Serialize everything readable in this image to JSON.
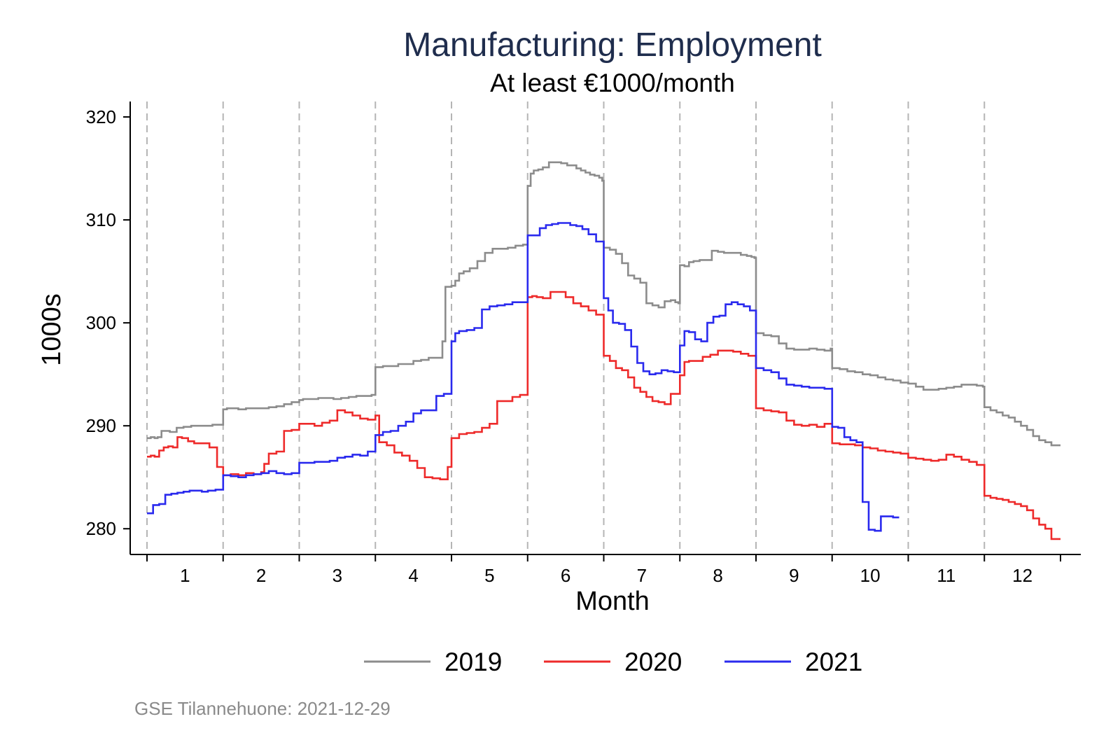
{
  "chart_data": {
    "type": "line",
    "title": "Manufacturing: Employment",
    "subtitle": "At least €1000/month",
    "xlabel": "Month",
    "ylabel": "1000s",
    "footnote": "GSE Tilannehuone: 2021-12-29",
    "x_ticks": [
      "1",
      "2",
      "3",
      "4",
      "5",
      "6",
      "7",
      "8",
      "9",
      "10",
      "11",
      "12"
    ],
    "xlim": [
      1,
      13
    ],
    "ylim": [
      277.5,
      321.5
    ],
    "y_ticks": [
      280,
      290,
      300,
      310,
      320
    ],
    "month_boundaries": [
      1,
      2,
      3,
      4,
      5,
      6,
      7,
      8,
      9,
      10,
      11,
      12
    ],
    "grid": "vertical dashed month boundaries",
    "legend_position": "bottom",
    "colors": {
      "2019": "#8c8c8c",
      "2020": "#ee2a2a",
      "2021": "#2a2aee",
      "title": "#1f2d4d",
      "footnote": "#8a8a8a",
      "gridline": "#b5b5b5"
    },
    "series": [
      {
        "name": "2019",
        "color": "#8c8c8c",
        "x": [
          1.0,
          1.05,
          1.1,
          1.14,
          1.19,
          1.25,
          1.3,
          1.39,
          1.48,
          1.58,
          1.67,
          1.77,
          1.86,
          1.96,
          2.0,
          2.05,
          2.12,
          2.2,
          2.3,
          2.4,
          2.5,
          2.6,
          2.7,
          2.8,
          2.9,
          3.0,
          3.05,
          3.15,
          3.25,
          3.35,
          3.45,
          3.55,
          3.65,
          3.75,
          3.85,
          3.95,
          4.0,
          4.1,
          4.2,
          4.3,
          4.4,
          4.5,
          4.6,
          4.7,
          4.8,
          4.88,
          4.92,
          5.0,
          5.05,
          5.1,
          5.16,
          5.24,
          5.34,
          5.44,
          5.54,
          5.64,
          5.74,
          5.84,
          5.94,
          6.0,
          6.04,
          6.08,
          6.14,
          6.2,
          6.28,
          6.34,
          6.44,
          6.52,
          6.58,
          6.64,
          6.7,
          6.76,
          6.82,
          6.88,
          6.94,
          6.98,
          7.0,
          7.08,
          7.16,
          7.24,
          7.32,
          7.4,
          7.48,
          7.56,
          7.64,
          7.72,
          7.8,
          7.88,
          7.94,
          7.98,
          8.0,
          8.06,
          8.12,
          8.18,
          8.26,
          8.34,
          8.42,
          8.5,
          8.58,
          8.64,
          8.72,
          8.8,
          8.88,
          8.94,
          8.98,
          9.0,
          9.1,
          9.2,
          9.3,
          9.4,
          9.5,
          9.6,
          9.7,
          9.8,
          9.9,
          9.98,
          10.0,
          10.1,
          10.2,
          10.3,
          10.4,
          10.5,
          10.6,
          10.7,
          10.8,
          10.9,
          11.0,
          11.1,
          11.2,
          11.3,
          11.4,
          11.5,
          11.6,
          11.7,
          11.8,
          11.9,
          11.98,
          12.0,
          12.08,
          12.16,
          12.24,
          12.32,
          12.4,
          12.48,
          12.56,
          12.64,
          12.72,
          12.8,
          12.88,
          12.96
        ],
        "y": [
          288.8,
          288.9,
          288.8,
          288.9,
          289.5,
          289.5,
          289.4,
          289.8,
          289.9,
          290.0,
          290.0,
          290.0,
          290.1,
          290.1,
          291.6,
          291.7,
          291.7,
          291.6,
          291.7,
          291.7,
          291.7,
          291.8,
          291.9,
          292.1,
          292.3,
          292.5,
          292.6,
          292.6,
          292.7,
          292.7,
          292.6,
          292.7,
          292.8,
          292.9,
          292.9,
          293.0,
          295.7,
          295.8,
          295.8,
          296.0,
          296.0,
          296.3,
          296.4,
          296.6,
          296.6,
          298.2,
          303.5,
          303.6,
          304.1,
          304.8,
          305.0,
          305.3,
          306.0,
          306.8,
          307.2,
          307.2,
          307.3,
          307.5,
          307.6,
          313.3,
          314.5,
          314.8,
          314.9,
          315.1,
          315.6,
          315.6,
          315.5,
          315.3,
          315.3,
          315.0,
          314.8,
          314.6,
          314.4,
          314.3,
          314.1,
          313.8,
          307.3,
          307.1,
          306.7,
          305.8,
          304.6,
          304.3,
          303.9,
          301.9,
          301.7,
          301.5,
          302.1,
          302.2,
          302.0,
          301.9,
          305.6,
          305.5,
          305.9,
          306.0,
          306.1,
          306.1,
          307.0,
          306.9,
          306.8,
          306.8,
          306.8,
          306.6,
          306.5,
          306.4,
          306.3,
          299.0,
          298.8,
          298.7,
          298.0,
          297.5,
          297.4,
          297.4,
          297.5,
          297.4,
          297.3,
          297.5,
          295.6,
          295.5,
          295.3,
          295.2,
          295.0,
          294.9,
          294.7,
          294.5,
          294.4,
          294.2,
          294.1,
          293.8,
          293.5,
          293.5,
          293.6,
          293.7,
          293.8,
          294.0,
          294.0,
          293.9,
          293.8,
          291.8,
          291.5,
          291.3,
          291.0,
          290.8,
          290.4,
          290.0,
          289.6,
          289.0,
          288.6,
          288.4,
          288.1,
          288.1
        ]
      },
      {
        "name": "2020",
        "color": "#ee2a2a",
        "x": [
          1.0,
          1.05,
          1.1,
          1.16,
          1.22,
          1.28,
          1.34,
          1.4,
          1.46,
          1.54,
          1.62,
          1.72,
          1.82,
          1.92,
          2.0,
          2.1,
          2.2,
          2.3,
          2.4,
          2.5,
          2.54,
          2.6,
          2.7,
          2.8,
          2.9,
          3.0,
          3.1,
          3.2,
          3.3,
          3.4,
          3.5,
          3.6,
          3.7,
          3.8,
          3.9,
          4.0,
          4.05,
          4.15,
          4.25,
          4.35,
          4.45,
          4.55,
          4.65,
          4.75,
          4.85,
          4.95,
          5.0,
          5.1,
          5.2,
          5.3,
          5.4,
          5.5,
          5.6,
          5.7,
          5.8,
          5.9,
          6.0,
          6.06,
          6.12,
          6.2,
          6.3,
          6.4,
          6.5,
          6.6,
          6.7,
          6.8,
          6.9,
          7.0,
          7.08,
          7.16,
          7.24,
          7.32,
          7.4,
          7.48,
          7.56,
          7.64,
          7.72,
          7.8,
          7.88,
          7.94,
          8.0,
          8.06,
          8.12,
          8.2,
          8.3,
          8.4,
          8.5,
          8.6,
          8.7,
          8.8,
          8.9,
          9.0,
          9.1,
          9.2,
          9.3,
          9.4,
          9.5,
          9.6,
          9.7,
          9.8,
          9.9,
          10.0,
          10.1,
          10.2,
          10.3,
          10.4,
          10.5,
          10.6,
          10.7,
          10.8,
          10.9,
          11.0,
          11.1,
          11.2,
          11.3,
          11.4,
          11.5,
          11.6,
          11.7,
          11.8,
          11.9,
          12.0,
          12.08,
          12.16,
          12.24,
          12.32,
          12.4,
          12.48,
          12.56,
          12.64,
          12.72,
          12.8,
          12.88,
          12.96
        ],
        "y": [
          287.0,
          287.1,
          287.0,
          287.6,
          287.9,
          288.0,
          287.9,
          288.9,
          288.8,
          288.5,
          288.3,
          288.3,
          287.9,
          286.0,
          285.2,
          285.3,
          285.2,
          285.4,
          285.3,
          285.5,
          286.3,
          287.3,
          287.5,
          289.5,
          289.6,
          290.2,
          290.2,
          290.0,
          290.3,
          290.5,
          291.5,
          291.3,
          291.0,
          290.7,
          290.6,
          291.0,
          288.4,
          288.1,
          287.4,
          287.1,
          286.6,
          285.9,
          285.0,
          284.9,
          284.8,
          286.0,
          288.8,
          289.2,
          289.3,
          289.4,
          289.8,
          290.2,
          292.4,
          292.4,
          292.8,
          293.0,
          302.5,
          302.6,
          302.5,
          302.4,
          303.0,
          303.0,
          302.5,
          301.9,
          301.6,
          301.2,
          300.8,
          296.8,
          296.3,
          295.6,
          295.4,
          294.7,
          293.7,
          293.3,
          292.8,
          292.4,
          292.3,
          292.1,
          293.1,
          293.1,
          294.9,
          296.2,
          296.3,
          296.3,
          296.7,
          296.9,
          297.3,
          297.3,
          297.2,
          297.0,
          296.8,
          291.7,
          291.5,
          291.4,
          291.3,
          290.5,
          290.1,
          290.0,
          290.1,
          289.9,
          290.2,
          288.3,
          288.2,
          288.2,
          288.1,
          287.9,
          287.8,
          287.6,
          287.5,
          287.4,
          287.3,
          286.9,
          286.8,
          286.7,
          286.6,
          286.7,
          287.2,
          287.0,
          286.7,
          286.5,
          286.2,
          283.2,
          283.0,
          282.9,
          282.8,
          282.6,
          282.4,
          282.2,
          281.8,
          281.0,
          280.4,
          280.0,
          279.0,
          279.0
        ]
      },
      {
        "name": "2021",
        "color": "#2a2aee",
        "x": [
          1.0,
          1.08,
          1.16,
          1.24,
          1.32,
          1.4,
          1.48,
          1.56,
          1.64,
          1.72,
          1.8,
          1.9,
          2.0,
          2.1,
          2.2,
          2.3,
          2.4,
          2.5,
          2.6,
          2.7,
          2.8,
          2.9,
          3.0,
          3.1,
          3.2,
          3.3,
          3.4,
          3.5,
          3.6,
          3.7,
          3.8,
          3.9,
          4.0,
          4.1,
          4.2,
          4.3,
          4.4,
          4.5,
          4.6,
          4.7,
          4.8,
          4.9,
          5.0,
          5.05,
          5.1,
          5.2,
          5.3,
          5.4,
          5.5,
          5.6,
          5.7,
          5.8,
          5.9,
          6.0,
          6.08,
          6.16,
          6.24,
          6.32,
          6.4,
          6.48,
          6.56,
          6.64,
          6.72,
          6.8,
          6.9,
          7.0,
          7.06,
          7.12,
          7.2,
          7.28,
          7.36,
          7.44,
          7.52,
          7.6,
          7.68,
          7.76,
          7.84,
          7.92,
          8.0,
          8.06,
          8.12,
          8.2,
          8.28,
          8.36,
          8.44,
          8.52,
          8.6,
          8.68,
          8.76,
          8.84,
          8.92,
          9.0,
          9.1,
          9.2,
          9.3,
          9.4,
          9.5,
          9.6,
          9.7,
          9.8,
          9.9,
          10.0,
          10.08,
          10.16,
          10.24,
          10.32,
          10.4,
          10.48,
          10.56,
          10.64,
          10.72,
          10.8
        ],
        "y": [
          281.5,
          282.3,
          282.4,
          283.3,
          283.4,
          283.5,
          283.6,
          283.7,
          283.7,
          283.6,
          283.7,
          283.8,
          285.2,
          285.1,
          285.0,
          285.2,
          285.3,
          285.4,
          285.6,
          285.4,
          285.3,
          285.4,
          286.4,
          286.4,
          286.5,
          286.5,
          286.6,
          286.9,
          287.0,
          287.2,
          287.1,
          287.5,
          289.1,
          289.4,
          289.5,
          290.0,
          290.4,
          291.2,
          291.5,
          291.5,
          292.9,
          293.1,
          298.2,
          299.0,
          299.2,
          299.3,
          299.5,
          301.3,
          301.6,
          301.7,
          301.8,
          302.0,
          302.0,
          308.5,
          308.5,
          309.2,
          309.5,
          309.6,
          309.7,
          309.7,
          309.5,
          309.4,
          309.1,
          308.6,
          307.9,
          302.4,
          301.2,
          300.0,
          299.9,
          299.3,
          297.7,
          296.1,
          295.3,
          295.0,
          295.1,
          295.4,
          295.3,
          295.2,
          297.8,
          299.2,
          299.1,
          298.4,
          298.2,
          300.0,
          300.6,
          300.7,
          301.8,
          302.0,
          301.8,
          301.6,
          301.2,
          295.6,
          295.4,
          295.2,
          294.6,
          294.0,
          293.9,
          293.8,
          293.7,
          293.7,
          293.6,
          289.9,
          289.8,
          288.9,
          288.6,
          288.4,
          282.6,
          279.9,
          279.8,
          281.2,
          281.2,
          281.1
        ]
      }
    ]
  }
}
